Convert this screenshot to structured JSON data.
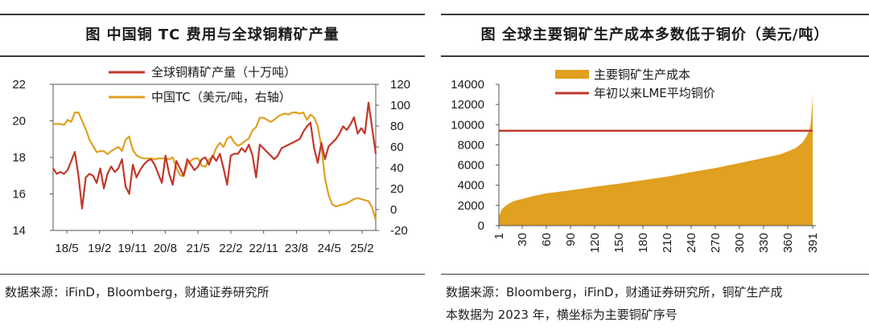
{
  "left": {
    "title": "图  中国铜 TC 费用与全球铜精矿产量",
    "source": "数据来源：iFinD，Bloomberg，财通证券研究所",
    "chart_data": {
      "type": "line",
      "x_ticks": [
        "18/5",
        "19/2",
        "19/11",
        "20/8",
        "21/5",
        "22/2",
        "22/11",
        "23/8",
        "24/5",
        "25/2"
      ],
      "y_left_ticks": [
        "14",
        "16",
        "18",
        "20",
        "22"
      ],
      "y_right_ticks": [
        "-20",
        "0",
        "20",
        "40",
        "60",
        "80",
        "100",
        "120"
      ],
      "ylim_left": [
        14,
        22
      ],
      "ylim_right": [
        -20,
        120
      ],
      "legend_position": "top",
      "series": [
        {
          "name": "全球铜精矿产量（十万吨）",
          "color": "#c0392b",
          "axis": "left",
          "values": [
            17.4,
            17.1,
            17.2,
            17.1,
            17.3,
            17.8,
            18.3,
            17.0,
            15.2,
            16.9,
            17.1,
            17.0,
            16.6,
            17.4,
            16.3,
            17.1,
            17.5,
            17.2,
            17.4,
            17.9,
            16.4,
            16.0,
            17.6,
            16.9,
            17.3,
            17.6,
            17.8,
            17.9,
            17.6,
            17.1,
            16.6,
            18.1,
            17.1,
            16.5,
            17.8,
            17.4,
            17.0,
            17.9,
            17.6,
            17.3,
            17.5,
            17.9,
            18.0,
            17.6,
            18.1,
            17.8,
            18.2,
            17.4,
            16.5,
            18.1,
            18.2,
            18.2,
            18.5,
            18.3,
            18.7,
            18.1,
            16.9,
            18.7,
            18.5,
            18.3,
            18.1,
            17.9,
            18.1,
            18.5,
            18.6,
            18.7,
            18.8,
            18.9,
            19.0,
            19.4,
            19.7,
            19.9,
            18.5,
            17.7,
            18.8,
            17.9,
            18.6,
            18.8,
            19.0,
            19.3,
            19.7,
            19.5,
            19.8,
            20.2,
            19.3,
            19.6,
            19.3,
            21.0,
            19.6,
            18.2
          ]
        },
        {
          "name": "中国TC（美元/吨，右轴）",
          "color": "#e0a020",
          "axis": "right",
          "values": [
            82,
            82,
            82,
            81,
            86,
            84,
            93,
            93,
            85,
            77,
            67,
            61,
            55,
            56,
            56,
            53,
            56,
            58,
            60,
            56,
            67,
            70,
            57,
            52,
            50,
            49,
            49,
            49,
            48,
            49,
            49,
            49,
            48,
            50,
            40,
            33,
            32,
            43,
            47,
            49,
            49,
            42,
            41,
            48,
            50,
            59,
            64,
            60,
            68,
            70,
            64,
            61,
            63,
            66,
            68,
            76,
            79,
            88,
            88,
            86,
            84,
            86,
            89,
            91,
            92,
            91,
            93,
            93,
            92,
            93,
            86,
            91,
            88,
            80,
            60,
            30,
            14,
            5,
            3,
            4,
            5,
            6,
            8,
            10,
            11,
            10,
            9,
            8,
            2,
            -10
          ]
        }
      ]
    }
  },
  "right": {
    "title": "图  全球主要铜矿生产成本多数低于铜价（美元/吨）",
    "source_line1": "数据来源：Bloomberg，iFinD，财通证券研究所，铜矿生产成",
    "source_line2": "本数据为 2023 年，横坐标为主要铜矿序号",
    "chart_data": {
      "type": "area",
      "x_ticks": [
        "1",
        "30",
        "60",
        "90",
        "120",
        "150",
        "180",
        "210",
        "240",
        "270",
        "300",
        "330",
        "360",
        "391"
      ],
      "y_ticks": [
        "0",
        "2000",
        "4000",
        "6000",
        "8000",
        "10000",
        "12000",
        "14000"
      ],
      "ylim": [
        0,
        14000
      ],
      "xlim": [
        1,
        391
      ],
      "legend_position": "top-left",
      "series": [
        {
          "name": "主要铜矿生产成本",
          "color": "#e0a020",
          "x": [
            1,
            3,
            5,
            10,
            15,
            20,
            30,
            45,
            60,
            90,
            120,
            150,
            180,
            210,
            240,
            270,
            300,
            330,
            350,
            360,
            370,
            378,
            383,
            386,
            388,
            389,
            390,
            391
          ],
          "values": [
            900,
            1300,
            1650,
            2000,
            2250,
            2450,
            2650,
            2950,
            3200,
            3500,
            3850,
            4150,
            4500,
            4850,
            5300,
            5700,
            6200,
            6700,
            7050,
            7350,
            7700,
            8200,
            8800,
            9300,
            9800,
            10500,
            11500,
            13000
          ]
        },
        {
          "name": "年初以来LME平均铜价",
          "color": "#c0392b",
          "values": [
            9400
          ]
        }
      ]
    }
  }
}
